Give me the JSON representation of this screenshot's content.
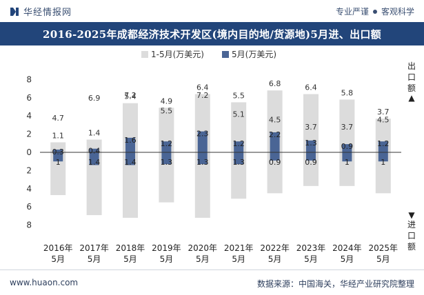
{
  "header": {
    "brand_name": "华经情报网",
    "tag_left": "专业严谨",
    "tag_right": "客观科学"
  },
  "title": "2016-2025年成都经济技术开发区(境内目的地/货源地)5月进、出口额",
  "legend": {
    "series_a": "1-5月(万美元)",
    "series_b": "5月(万美元)"
  },
  "side_labels": {
    "export_top": "出口额",
    "import_bottom": "进口额",
    "export_arrow": "▲",
    "import_arrow": "▼"
  },
  "footer": {
    "website": "www.huaon.com",
    "source": "数据来源：中国海关，华经产业研究院整理"
  },
  "colors": {
    "title_bg": "#22457a",
    "bar_cumulative": "#dcdcdc",
    "bar_month": "#4a6595",
    "axis": "#333333"
  },
  "chart_data": {
    "type": "bar",
    "categories": [
      "2016年\n5月",
      "2017年\n5月",
      "2018年\n5月",
      "2019年\n5月",
      "2020年\n5月",
      "2021年\n5月",
      "2022年\n5月",
      "2023年\n5月",
      "2024年\n5月",
      "2025年\n5月"
    ],
    "series": [
      {
        "name": "1-5月(万美元)",
        "export": [
          1.1,
          1.4,
          5.4,
          4.9,
          6.4,
          5.5,
          6.8,
          6.4,
          5.8,
          3.7
        ],
        "import": [
          4.7,
          6.9,
          7.2,
          5.5,
          7.2,
          5.1,
          4.5,
          3.7,
          3.7,
          4.5
        ]
      },
      {
        "name": "5月(万美元)",
        "export": [
          0.3,
          0.4,
          1.6,
          1.2,
          2.3,
          1.2,
          2.2,
          1.3,
          0.9,
          1.2
        ],
        "import": [
          1,
          1.4,
          1.4,
          1.3,
          1.3,
          1.3,
          0.9,
          0.9,
          1,
          1
        ]
      }
    ],
    "yticks": [
      "8",
      "6",
      "4",
      "2",
      "0",
      "2",
      "4",
      "6",
      "8"
    ],
    "ylim": [
      -8,
      8
    ],
    "grid": false,
    "legend_position": "top"
  }
}
